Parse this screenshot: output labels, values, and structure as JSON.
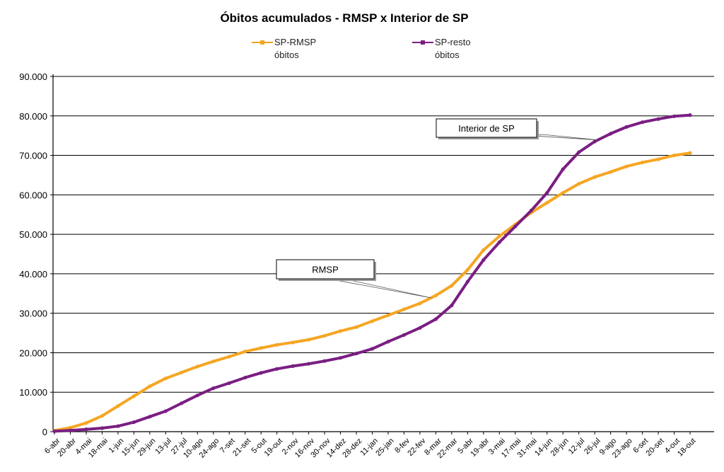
{
  "chart_data": {
    "type": "line",
    "title": "Óbitos acumulados - RMSP  x  Interior de SP",
    "xlabel": "",
    "ylabel": "",
    "ylim": [
      0,
      90000
    ],
    "yticks": [
      0,
      10000,
      20000,
      30000,
      40000,
      50000,
      60000,
      70000,
      80000,
      90000
    ],
    "ytick_labels": [
      "0",
      "10.000",
      "20.000",
      "30.000",
      "40.000",
      "50.000",
      "60.000",
      "70.000",
      "80.000",
      "90.000"
    ],
    "x": [
      "6-abr",
      "20-abr",
      "4-mai",
      "18-mai",
      "1-jun",
      "15-jun",
      "29-jun",
      "13-jul",
      "27-jul",
      "10-ago",
      "24-ago",
      "7-set",
      "21-set",
      "5-out",
      "19-out",
      "2-nov",
      "16-nov",
      "30-nov",
      "14-dez",
      "28-dez",
      "11-jan",
      "25-jan",
      "8-fev",
      "22-fev",
      "8-mar",
      "22-mar",
      "5-abr",
      "19-abr",
      "3-mai",
      "17-mai",
      "31-mai",
      "14-jun",
      "28-jun",
      "12-jul",
      "26-jul",
      "9-ago",
      "23-ago",
      "6-set",
      "20-set",
      "4-out",
      "18-out"
    ],
    "grid": true,
    "legend_position": "top-center",
    "series": [
      {
        "name_line1": "SP-RMSP",
        "name_line2": "óbitos",
        "color": "#F5A623",
        "values": [
          300,
          1000,
          2200,
          4000,
          6500,
          9000,
          11500,
          13500,
          15000,
          16500,
          17800,
          19000,
          20300,
          21200,
          22000,
          22600,
          23300,
          24300,
          25500,
          26500,
          28000,
          29500,
          31000,
          32500,
          34500,
          37000,
          41000,
          46000,
          49500,
          52500,
          55500,
          58000,
          60500,
          62800,
          64500,
          65800,
          67200,
          68200,
          69000,
          70000,
          70600
        ]
      },
      {
        "name_line1": "SP-resto",
        "name_line2": "óbitos",
        "color": "#7A1E82",
        "values": [
          100,
          300,
          600,
          900,
          1400,
          2400,
          3800,
          5200,
          7200,
          9200,
          11000,
          12300,
          13700,
          14900,
          15900,
          16600,
          17200,
          17900,
          18700,
          19800,
          21000,
          22800,
          24500,
          26300,
          28500,
          32000,
          38000,
          43500,
          48000,
          52000,
          56000,
          60500,
          66500,
          70800,
          73500,
          75500,
          77200,
          78400,
          79200,
          79900,
          80200
        ]
      }
    ],
    "annotations": [
      {
        "text": "RMSP",
        "series": 0,
        "x_index": 23.7
      },
      {
        "text": "Interior de SP",
        "series": 1,
        "x_index": 34.2
      }
    ]
  }
}
